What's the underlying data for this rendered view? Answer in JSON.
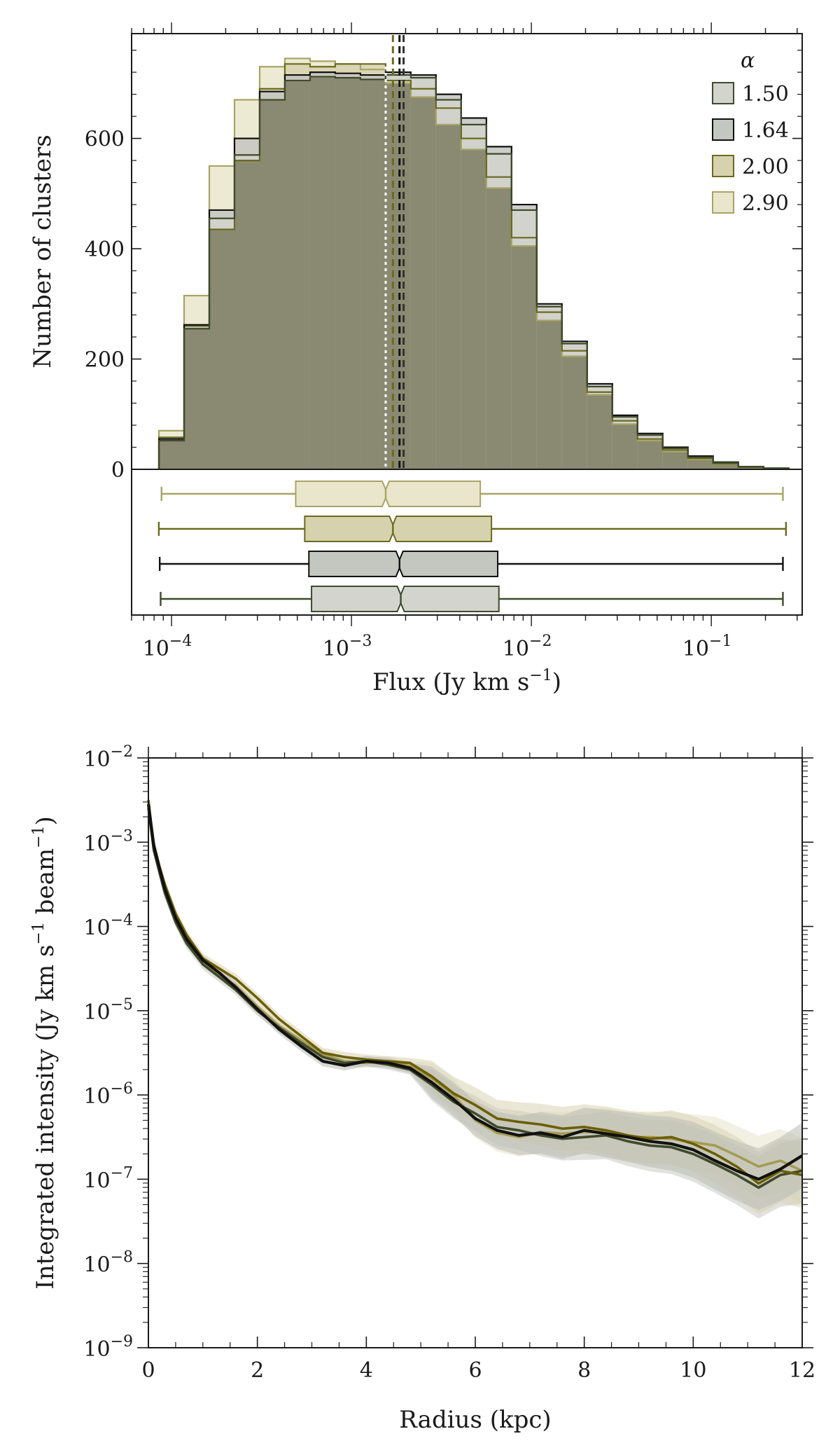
{
  "colors": {
    "a150": "#d2d4cd",
    "a164": "#c4c6c0",
    "a200": "#d6d2ad",
    "a290": "#eae6cc",
    "edge150": "#3f4a2c",
    "edge164": "#111111",
    "edge200": "#6b6a1f",
    "edge290": "#a8a466",
    "overlap": "#8a8a72",
    "line150": "#3f4a2c",
    "line164": "#111111",
    "line200": "#6b5e00",
    "line290": "#a59b55"
  },
  "chart_data": [
    {
      "id": "flux-histogram",
      "type": "bar",
      "xscale": "log",
      "xlim": [
        6e-05,
        0.32
      ],
      "ylim": [
        0,
        790
      ],
      "xlabel_text": "Flux (Jy km s",
      "xlabel_sup": "−1",
      "xlabel_close": ")",
      "ylabel": "Number of clusters",
      "yticks": [
        {
          "value": 0,
          "label": "0"
        },
        {
          "value": 200,
          "label": "200"
        },
        {
          "value": 400,
          "label": "400"
        },
        {
          "value": 600,
          "label": "600"
        }
      ],
      "xticks": [
        {
          "value": 0.0001,
          "base": "10",
          "exp": "−4"
        },
        {
          "value": 0.001,
          "base": "10",
          "exp": "−3"
        },
        {
          "value": 0.01,
          "base": "10",
          "exp": "−2"
        },
        {
          "value": 0.1,
          "base": "10",
          "exp": "−1"
        }
      ],
      "bin_edges_log10": [
        -4.07,
        -3.93,
        -3.79,
        -3.65,
        -3.51,
        -3.37,
        -3.23,
        -3.09,
        -2.95,
        -2.81,
        -2.67,
        -2.53,
        -2.39,
        -2.25,
        -2.11,
        -1.97,
        -1.83,
        -1.69,
        -1.55,
        -1.41,
        -1.27,
        -1.13,
        -0.99,
        -0.85,
        -0.71,
        -0.57
      ],
      "legend_title": "α",
      "legend_position": "top-right",
      "series": [
        {
          "name": "1.50",
          "color_key": "a150",
          "edge_key": "edge150",
          "counts": [
            52,
            255,
            455,
            570,
            670,
            705,
            712,
            710,
            707,
            715,
            710,
            670,
            625,
            572,
            470,
            295,
            228,
            150,
            95,
            62,
            38,
            22,
            12,
            5,
            2
          ]
        },
        {
          "name": "1.64",
          "color_key": "a164",
          "edge_key": "edge164",
          "counts": [
            55,
            262,
            470,
            600,
            685,
            715,
            720,
            718,
            715,
            720,
            715,
            680,
            637,
            585,
            480,
            300,
            232,
            155,
            98,
            65,
            40,
            24,
            13,
            5,
            2
          ]
        },
        {
          "name": "2.00",
          "color_key": "a200",
          "edge_key": "edge200",
          "counts": [
            58,
            260,
            435,
            560,
            690,
            735,
            730,
            735,
            735,
            705,
            690,
            655,
            600,
            530,
            420,
            285,
            215,
            140,
            88,
            55,
            35,
            20,
            10,
            4,
            2
          ]
        },
        {
          "name": "2.90",
          "color_key": "a290",
          "edge_key": "edge290",
          "counts": [
            70,
            315,
            550,
            670,
            730,
            745,
            740,
            735,
            725,
            700,
            675,
            625,
            580,
            510,
            405,
            270,
            205,
            135,
            82,
            52,
            32,
            18,
            9,
            4,
            2
          ]
        }
      ],
      "medians": [
        {
          "series": "2.90",
          "value": 0.00155,
          "style": "dotted"
        },
        {
          "series": "2.00",
          "value": 0.0017,
          "style": "dashed"
        },
        {
          "series": "1.64",
          "value": 0.00185,
          "style": "dashed"
        },
        {
          "series": "1.50",
          "value": 0.00188,
          "style": "dashed"
        }
      ]
    },
    {
      "id": "flux-boxplots",
      "type": "boxplot",
      "xscale": "log",
      "boxes": [
        {
          "series": "2.90",
          "whisker_low": 8.8e-05,
          "q1": 0.00049,
          "median": 0.00155,
          "q3": 0.0052,
          "whisker_high": 0.25
        },
        {
          "series": "2.00",
          "whisker_low": 8.5e-05,
          "q1": 0.00055,
          "median": 0.0017,
          "q3": 0.006,
          "whisker_high": 0.26
        },
        {
          "series": "1.64",
          "whisker_low": 8.6e-05,
          "q1": 0.00058,
          "median": 0.00185,
          "q3": 0.0065,
          "whisker_high": 0.25
        },
        {
          "series": "1.50",
          "whisker_low": 8.7e-05,
          "q1": 0.0006,
          "median": 0.00188,
          "q3": 0.0066,
          "whisker_high": 0.25
        }
      ]
    },
    {
      "id": "radial-profile",
      "type": "line",
      "yscale": "log",
      "xlim": [
        0,
        12
      ],
      "ylim_log10": [
        -9,
        -2
      ],
      "xlabel": "Radius (kpc)",
      "ylabel_text": "Integrated intensity (Jy km s",
      "ylabel_sup1": "−1",
      "ylabel_mid": " beam",
      "ylabel_sup2": "−1",
      "ylabel_close": ")",
      "xticks": [
        {
          "value": 0,
          "label": "0"
        },
        {
          "value": 2,
          "label": "2"
        },
        {
          "value": 4,
          "label": "4"
        },
        {
          "value": 6,
          "label": "6"
        },
        {
          "value": 8,
          "label": "8"
        },
        {
          "value": 10,
          "label": "10"
        },
        {
          "value": 12,
          "label": "12"
        }
      ],
      "yticks": [
        {
          "value": -2,
          "base": "10",
          "exp": "−2"
        },
        {
          "value": -3,
          "base": "10",
          "exp": "−3"
        },
        {
          "value": -4,
          "base": "10",
          "exp": "−4"
        },
        {
          "value": -5,
          "base": "10",
          "exp": "−5"
        },
        {
          "value": -6,
          "base": "10",
          "exp": "−6"
        },
        {
          "value": -7,
          "base": "10",
          "exp": "−7"
        },
        {
          "value": -8,
          "base": "10",
          "exp": "−8"
        },
        {
          "value": -9,
          "base": "10",
          "exp": "−9"
        }
      ],
      "x": [
        0.0,
        0.05,
        0.1,
        0.2,
        0.3,
        0.5,
        0.7,
        1.0,
        1.3,
        1.6,
        2.0,
        2.4,
        2.8,
        3.2,
        3.6,
        4.0,
        4.4,
        4.8,
        5.2,
        5.6,
        6.0,
        6.4,
        6.8,
        7.2,
        7.6,
        8.0,
        8.4,
        8.8,
        9.2,
        9.6,
        10.0,
        10.4,
        10.8,
        11.2,
        11.6,
        12.0
      ],
      "series": [
        {
          "name": "1.50",
          "color_key": "line150",
          "log10_values": [
            -2.6,
            -2.85,
            -3.1,
            -3.35,
            -3.6,
            -3.95,
            -4.2,
            -4.45,
            -4.6,
            -4.75,
            -5.0,
            -5.2,
            -5.38,
            -5.55,
            -5.62,
            -5.6,
            -5.64,
            -5.7,
            -5.88,
            -6.08,
            -6.22,
            -6.38,
            -6.42,
            -6.48,
            -6.52,
            -6.5,
            -6.48,
            -6.55,
            -6.6,
            -6.62,
            -6.7,
            -6.82,
            -6.95,
            -7.1,
            -6.95,
            -6.9
          ]
        },
        {
          "name": "1.64",
          "color_key": "line164",
          "log10_values": [
            -2.55,
            -2.8,
            -3.05,
            -3.3,
            -3.55,
            -3.9,
            -4.15,
            -4.4,
            -4.55,
            -4.72,
            -4.98,
            -5.22,
            -5.42,
            -5.6,
            -5.65,
            -5.6,
            -5.62,
            -5.68,
            -5.85,
            -6.05,
            -6.28,
            -6.42,
            -6.48,
            -6.45,
            -6.5,
            -6.42,
            -6.46,
            -6.5,
            -6.55,
            -6.58,
            -6.65,
            -6.78,
            -6.9,
            -7.0,
            -6.88,
            -6.72
          ]
        },
        {
          "name": "2.00",
          "color_key": "line200",
          "log10_values": [
            -2.5,
            -2.78,
            -3.02,
            -3.28,
            -3.5,
            -3.85,
            -4.1,
            -4.38,
            -4.5,
            -4.62,
            -4.85,
            -5.1,
            -5.3,
            -5.5,
            -5.55,
            -5.58,
            -5.6,
            -5.62,
            -5.78,
            -5.98,
            -6.12,
            -6.28,
            -6.32,
            -6.35,
            -6.4,
            -6.38,
            -6.42,
            -6.48,
            -6.52,
            -6.5,
            -6.58,
            -6.7,
            -6.85,
            -7.05,
            -6.9,
            -6.95
          ]
        },
        {
          "name": "2.90",
          "color_key": "line290",
          "log10_values": [
            -2.55,
            -2.82,
            -3.08,
            -3.32,
            -3.58,
            -3.9,
            -4.18,
            -4.42,
            -4.58,
            -4.7,
            -4.95,
            -5.18,
            -5.35,
            -5.52,
            -5.6,
            -5.62,
            -5.6,
            -5.66,
            -5.8,
            -6.0,
            -6.3,
            -6.45,
            -6.5,
            -6.44,
            -6.46,
            -6.44,
            -6.44,
            -6.5,
            -6.5,
            -6.52,
            -6.56,
            -6.6,
            -6.72,
            -6.85,
            -6.78,
            -6.9
          ]
        }
      ]
    }
  ]
}
